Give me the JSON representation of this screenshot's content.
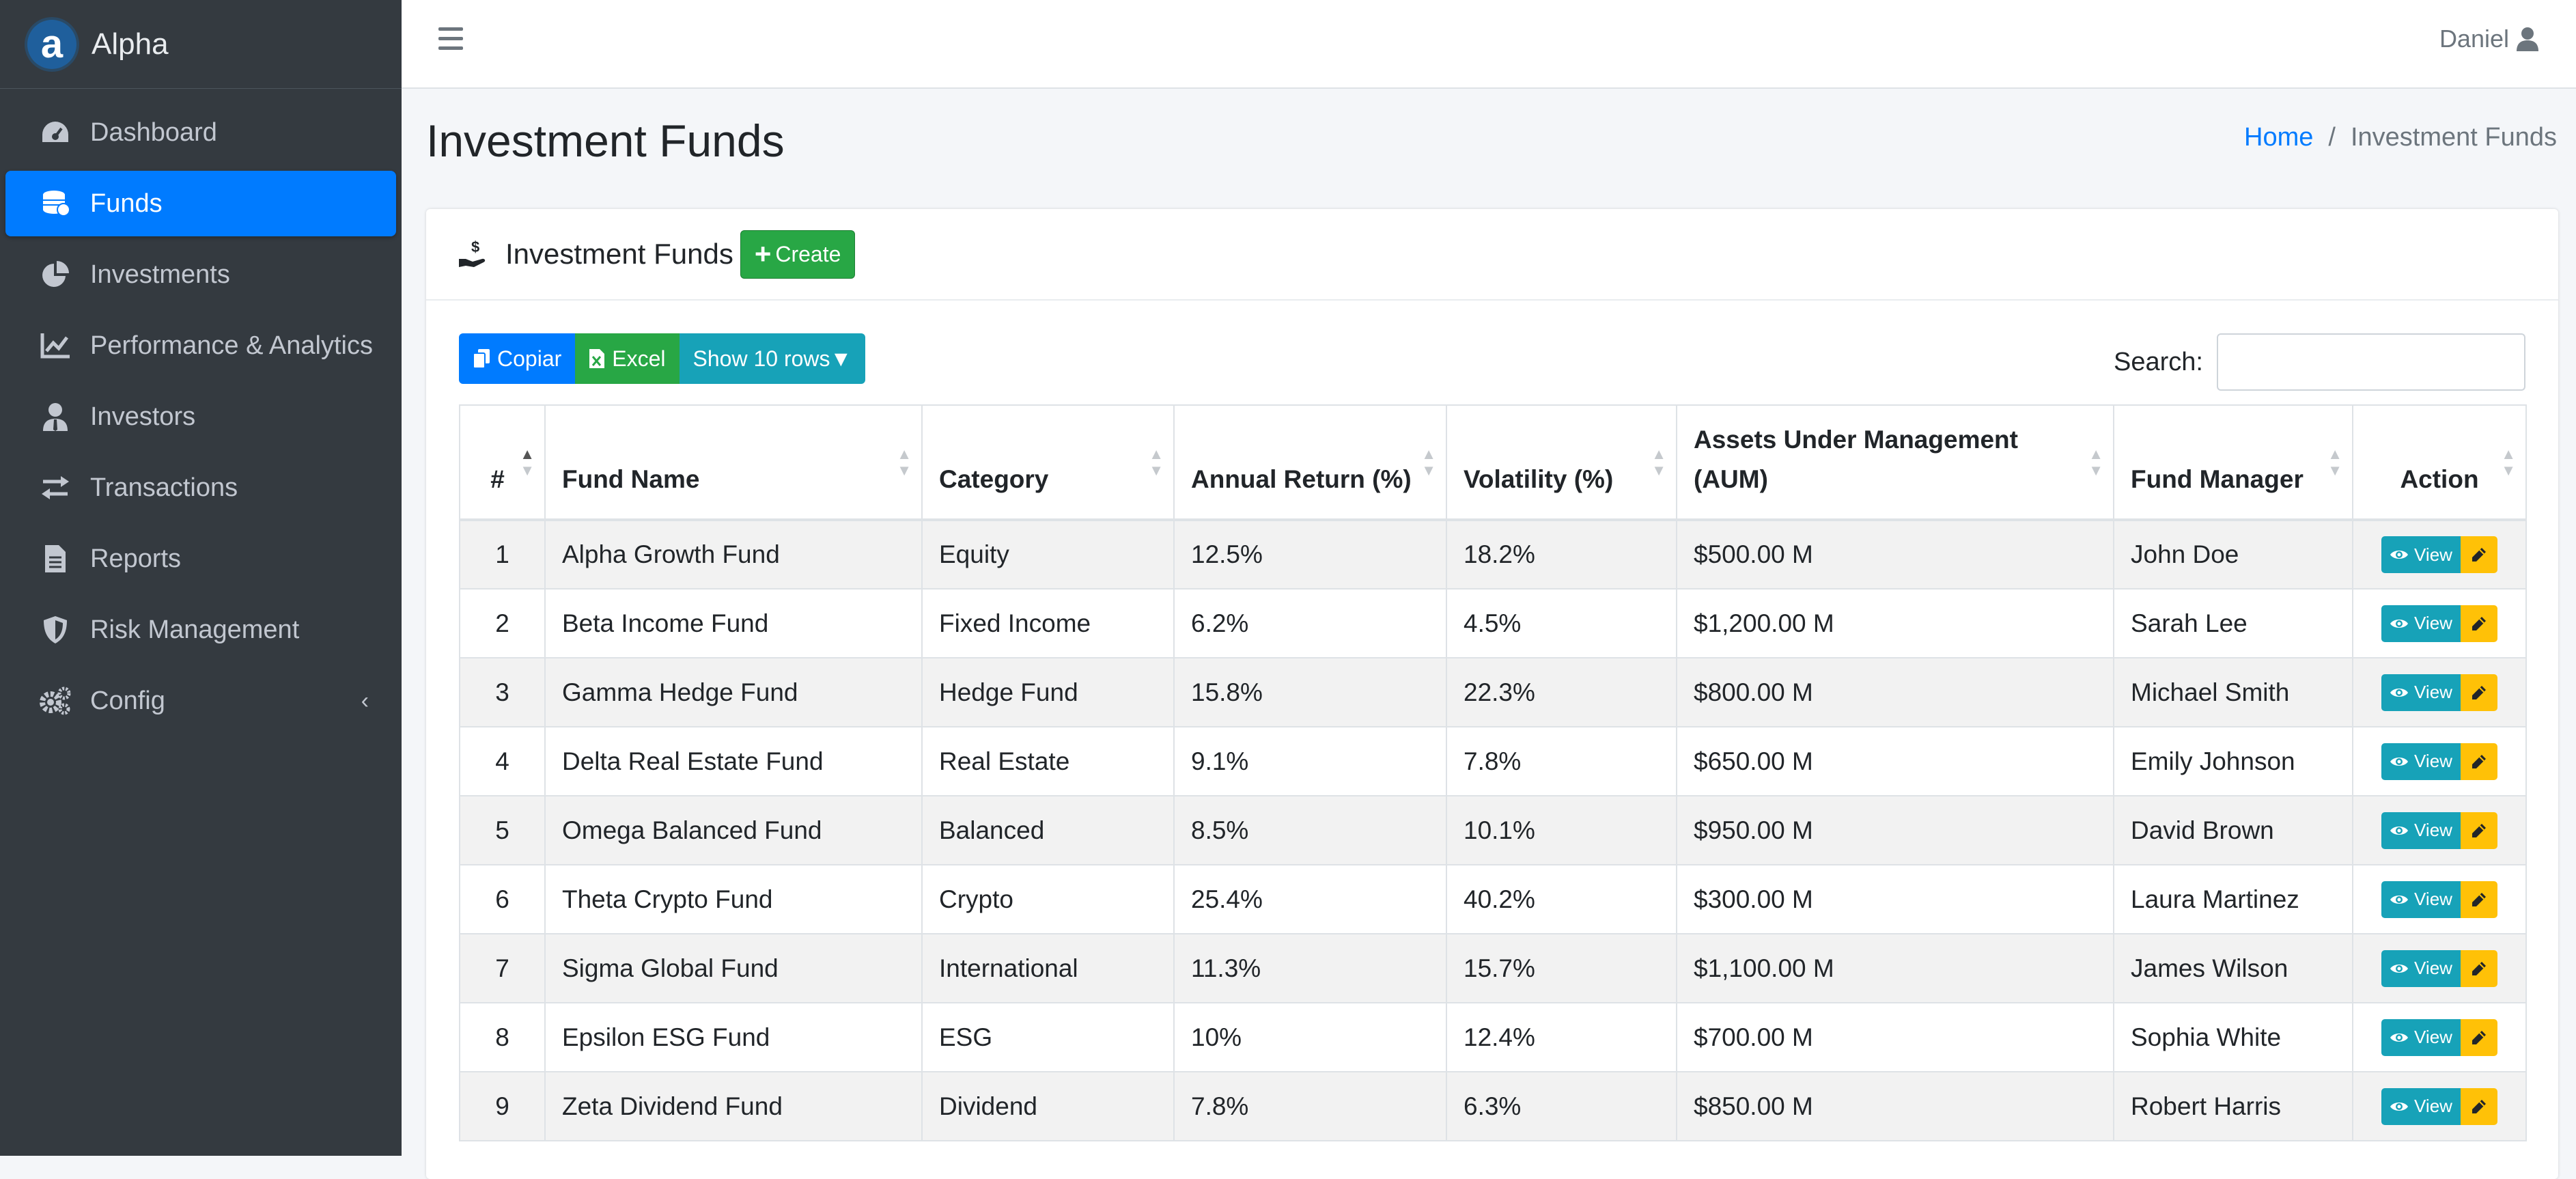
{
  "brand": {
    "letter": "a",
    "name": "Alpha"
  },
  "sidebar": {
    "items": [
      {
        "label": "Dashboard",
        "icon": "gauge-icon"
      },
      {
        "label": "Funds",
        "icon": "coins-icon",
        "active": true
      },
      {
        "label": "Investments",
        "icon": "pie-chart-icon"
      },
      {
        "label": "Performance & Analytics",
        "icon": "line-chart-icon"
      },
      {
        "label": "Investors",
        "icon": "user-tie-icon"
      },
      {
        "label": "Transactions",
        "icon": "exchange-icon"
      },
      {
        "label": "Reports",
        "icon": "file-alt-icon"
      },
      {
        "label": "Risk Management",
        "icon": "shield-icon"
      },
      {
        "label": "Config",
        "icon": "cogs-icon",
        "caret": "‹"
      }
    ]
  },
  "header": {
    "user": "Daniel"
  },
  "page": {
    "title": "Investment Funds"
  },
  "breadcrumb": {
    "home": "Home",
    "current": "Investment Funds"
  },
  "card": {
    "title": "Investment Funds",
    "create_label": "Create"
  },
  "toolbar": {
    "copy": "Copiar",
    "excel": "Excel",
    "rows": "Show 10 rows▼"
  },
  "search": {
    "label": "Search:",
    "value": "",
    "placeholder": ""
  },
  "table": {
    "headers": [
      "#",
      "Fund Name",
      "Category",
      "Annual Return (%)",
      "Volatility (%)",
      "Assets Under Management (AUM)",
      "Fund Manager",
      "Action"
    ],
    "view_label": "View",
    "rows": [
      [
        "1",
        "Alpha Growth Fund",
        "Equity",
        "12.5%",
        "18.2%",
        "$500.00 M",
        "John Doe"
      ],
      [
        "2",
        "Beta Income Fund",
        "Fixed Income",
        "6.2%",
        "4.5%",
        "$1,200.00 M",
        "Sarah Lee"
      ],
      [
        "3",
        "Gamma Hedge Fund",
        "Hedge Fund",
        "15.8%",
        "22.3%",
        "$800.00 M",
        "Michael Smith"
      ],
      [
        "4",
        "Delta Real Estate Fund",
        "Real Estate",
        "9.1%",
        "7.8%",
        "$650.00 M",
        "Emily Johnson"
      ],
      [
        "5",
        "Omega Balanced Fund",
        "Balanced",
        "8.5%",
        "10.1%",
        "$950.00 M",
        "David Brown"
      ],
      [
        "6",
        "Theta Crypto Fund",
        "Crypto",
        "25.4%",
        "40.2%",
        "$300.00 M",
        "Laura Martinez"
      ],
      [
        "7",
        "Sigma Global Fund",
        "International",
        "11.3%",
        "15.7%",
        "$1,100.00 M",
        "James Wilson"
      ],
      [
        "8",
        "Epsilon ESG Fund",
        "ESG",
        "10%",
        "12.4%",
        "$700.00 M",
        "Sophia White"
      ],
      [
        "9",
        "Zeta Dividend Fund",
        "Dividend",
        "7.8%",
        "6.3%",
        "$850.00 M",
        "Robert Harris"
      ]
    ]
  },
  "colors": {
    "primary": "#007bff",
    "success": "#28a745",
    "info": "#17a2b8",
    "warning": "#ffc107",
    "sidebar": "#343a40"
  }
}
